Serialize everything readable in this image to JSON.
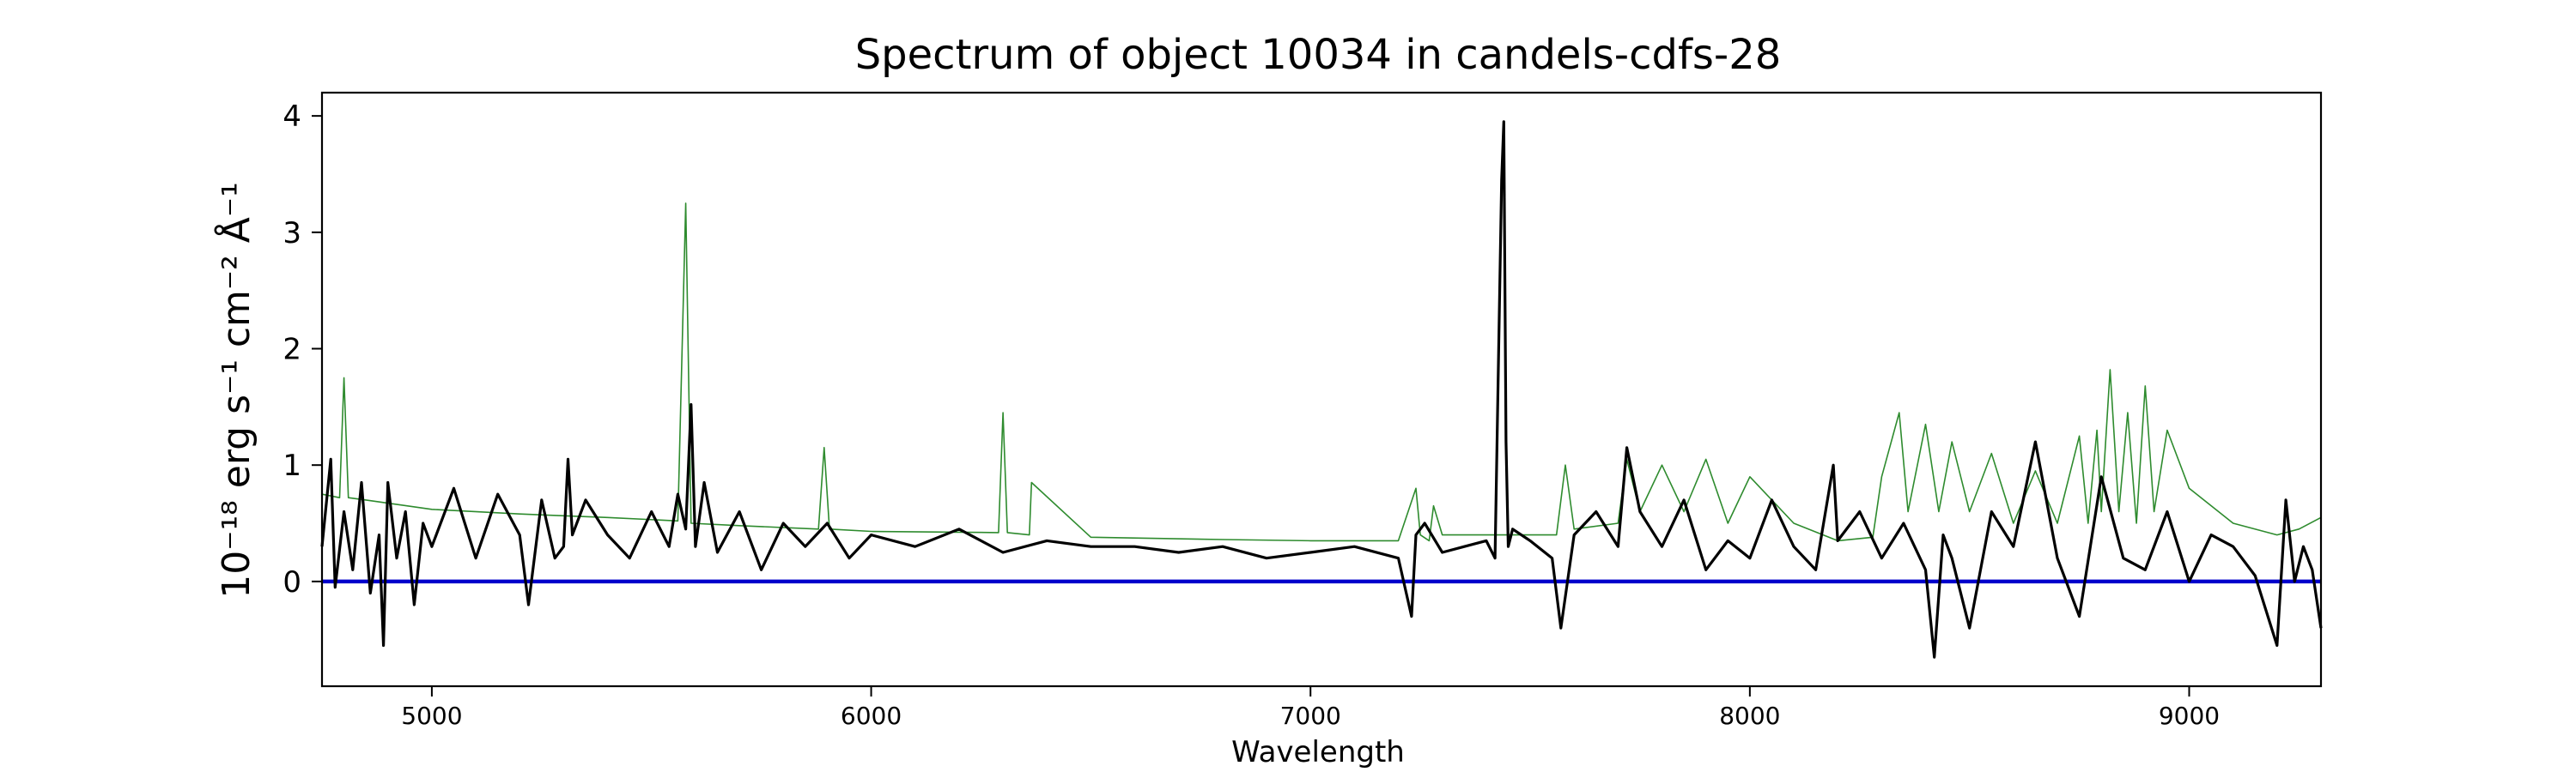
{
  "chart_data": {
    "type": "line",
    "title": "Spectrum of object 10034 in candels-cdfs-28",
    "xlabel": "Wavelength",
    "ylabel": "10⁻¹⁸ erg s⁻¹ cm⁻² Å⁻¹",
    "xlim": [
      4750,
      9300
    ],
    "ylim": [
      -0.9,
      4.2
    ],
    "xticks": [
      5000,
      6000,
      7000,
      8000,
      9000
    ],
    "xtick_labels": [
      "5000",
      "6000",
      "7000",
      "8000",
      "9000"
    ],
    "yticks": [
      0,
      1,
      2,
      3,
      4
    ],
    "ytick_labels": [
      "0",
      "1",
      "2",
      "3",
      "4"
    ],
    "grid": false,
    "legend": "none",
    "series": [
      {
        "role": "zero-line",
        "color": "#0000cc",
        "x": [
          4750,
          9300
        ],
        "y": [
          0,
          0
        ]
      },
      {
        "role": "noise",
        "color": "#2e8b2e",
        "x": [
          4750,
          4790,
          4800,
          4810,
          4850,
          5000,
          5200,
          5400,
          5560,
          5578,
          5590,
          5700,
          5880,
          5893,
          5905,
          6000,
          6290,
          6300,
          6310,
          6360,
          6365,
          6500,
          6800,
          7000,
          7200,
          7240,
          7250,
          7270,
          7280,
          7300,
          7500,
          7560,
          7580,
          7600,
          7700,
          7720,
          7750,
          7800,
          7850,
          7900,
          7950,
          8000,
          8100,
          8200,
          8280,
          8300,
          8340,
          8360,
          8400,
          8430,
          8460,
          8500,
          8550,
          8600,
          8650,
          8700,
          8750,
          8770,
          8790,
          8800,
          8820,
          8840,
          8860,
          8880,
          8900,
          8920,
          8950,
          9000,
          9100,
          9200,
          9250,
          9300
        ],
        "y": [
          0.75,
          0.72,
          1.75,
          0.72,
          0.7,
          0.62,
          0.58,
          0.55,
          0.52,
          3.25,
          0.5,
          0.48,
          0.45,
          1.15,
          0.45,
          0.43,
          0.42,
          1.45,
          0.42,
          0.4,
          0.85,
          0.38,
          0.36,
          0.35,
          0.35,
          0.8,
          0.4,
          0.35,
          0.65,
          0.4,
          0.4,
          0.4,
          1.0,
          0.45,
          0.5,
          1.05,
          0.6,
          1.0,
          0.6,
          1.05,
          0.5,
          0.9,
          0.5,
          0.35,
          0.38,
          0.9,
          1.45,
          0.6,
          1.35,
          0.6,
          1.2,
          0.6,
          1.1,
          0.5,
          0.95,
          0.5,
          1.25,
          0.5,
          1.3,
          0.6,
          1.82,
          0.6,
          1.45,
          0.5,
          1.68,
          0.6,
          1.3,
          0.8,
          0.5,
          0.4,
          0.45,
          0.55
        ]
      },
      {
        "role": "spectrum",
        "color": "#000000",
        "x": [
          4750,
          4770,
          4780,
          4800,
          4820,
          4840,
          4860,
          4880,
          4890,
          4900,
          4920,
          4940,
          4960,
          4980,
          5000,
          5050,
          5100,
          5150,
          5200,
          5220,
          5250,
          5280,
          5300,
          5310,
          5320,
          5350,
          5400,
          5450,
          5500,
          5540,
          5560,
          5578,
          5590,
          5600,
          5620,
          5650,
          5700,
          5750,
          5800,
          5850,
          5900,
          5950,
          6000,
          6100,
          6200,
          6300,
          6400,
          6500,
          6600,
          6700,
          6800,
          6900,
          7000,
          7100,
          7200,
          7230,
          7240,
          7260,
          7300,
          7350,
          7400,
          7420,
          7435,
          7440,
          7445,
          7450,
          7460,
          7500,
          7550,
          7570,
          7600,
          7650,
          7700,
          7720,
          7750,
          7800,
          7850,
          7900,
          7950,
          8000,
          8050,
          8100,
          8150,
          8190,
          8200,
          8250,
          8300,
          8350,
          8400,
          8420,
          8440,
          8460,
          8500,
          8550,
          8600,
          8650,
          8700,
          8750,
          8800,
          8850,
          8900,
          8950,
          9000,
          9050,
          9100,
          9150,
          9200,
          9220,
          9240,
          9260,
          9280,
          9300
        ],
        "y": [
          0.3,
          1.05,
          -0.05,
          0.6,
          0.1,
          0.85,
          -0.1,
          0.4,
          -0.55,
          0.85,
          0.2,
          0.6,
          -0.2,
          0.5,
          0.3,
          0.8,
          0.2,
          0.75,
          0.4,
          -0.2,
          0.7,
          0.2,
          0.3,
          1.05,
          0.4,
          0.7,
          0.4,
          0.2,
          0.6,
          0.3,
          0.75,
          0.45,
          1.52,
          0.3,
          0.85,
          0.25,
          0.6,
          0.1,
          0.5,
          0.3,
          0.5,
          0.2,
          0.4,
          0.3,
          0.45,
          0.25,
          0.35,
          0.3,
          0.3,
          0.25,
          0.3,
          0.2,
          0.25,
          0.3,
          0.2,
          -0.3,
          0.4,
          0.5,
          0.25,
          0.3,
          0.35,
          0.2,
          3.45,
          3.95,
          1.2,
          0.3,
          0.45,
          0.35,
          0.2,
          -0.4,
          0.4,
          0.6,
          0.3,
          1.15,
          0.6,
          0.3,
          0.7,
          0.1,
          0.35,
          0.2,
          0.7,
          0.3,
          0.1,
          1.0,
          0.35,
          0.6,
          0.2,
          0.5,
          0.1,
          -0.65,
          0.4,
          0.2,
          -0.4,
          0.6,
          0.3,
          1.2,
          0.2,
          -0.3,
          0.9,
          0.2,
          0.1,
          0.6,
          0.0,
          0.4,
          0.3,
          0.05,
          -0.55,
          0.7,
          0.0,
          0.3,
          0.1,
          -0.4
        ]
      }
    ]
  }
}
